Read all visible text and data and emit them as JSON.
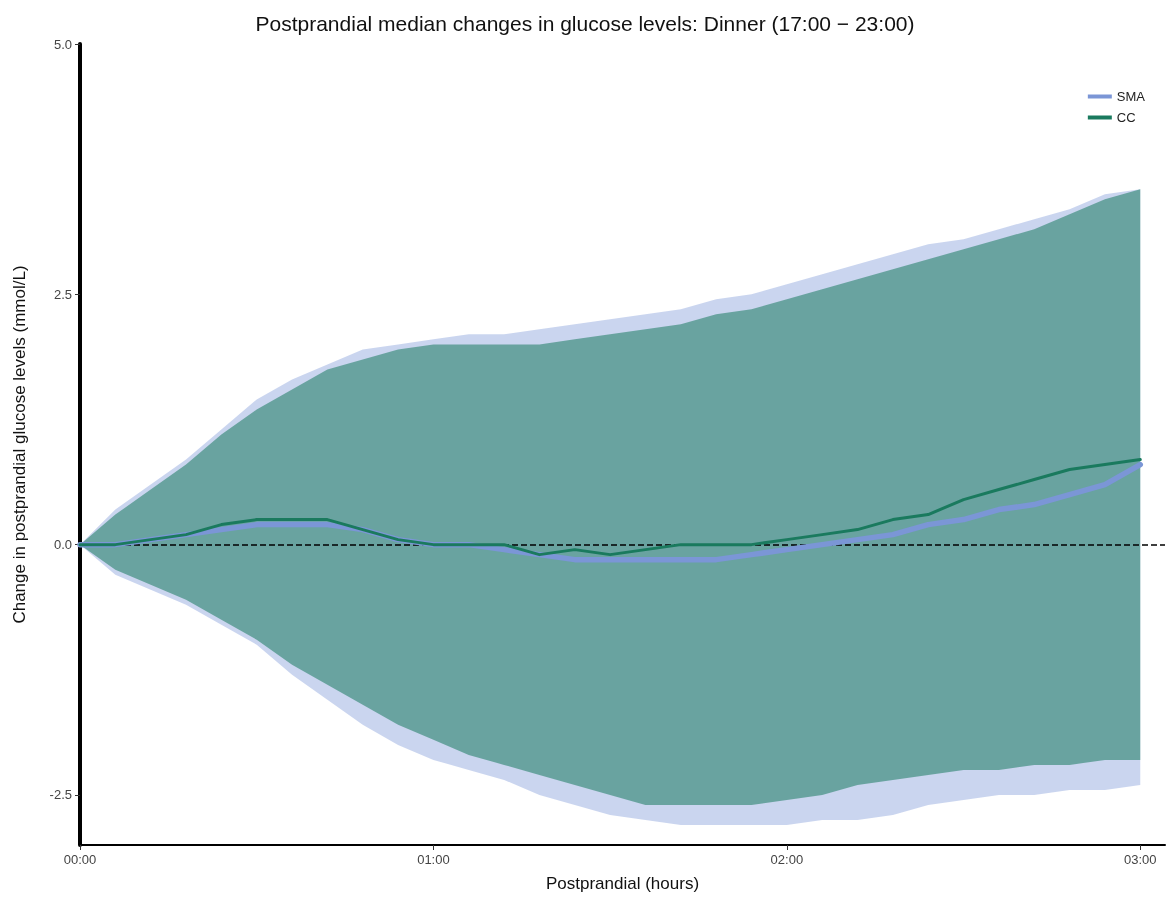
{
  "chart_data": {
    "type": "line",
    "title": "Postprandial median changes in glucose levels: Dinner (17:00 − 23:00)",
    "xlabel": "Postprandial (hours)",
    "ylabel": "Change in postprandial glucose levels (mmol/L)",
    "x": [
      0,
      0.1,
      0.2,
      0.3,
      0.4,
      0.5,
      0.6,
      0.7,
      0.8,
      0.9,
      1.0,
      1.1,
      1.2,
      1.3,
      1.4,
      1.5,
      1.6,
      1.7,
      1.8,
      1.9,
      2.0,
      2.1,
      2.2,
      2.3,
      2.4,
      2.5,
      2.6,
      2.7,
      2.8,
      2.9,
      3.0
    ],
    "series": [
      {
        "name": "SMA",
        "color": "#7b96d6",
        "values": [
          0,
          0,
          0.05,
          0.1,
          0.15,
          0.2,
          0.2,
          0.2,
          0.15,
          0.05,
          0,
          0,
          -0.05,
          -0.1,
          -0.15,
          -0.15,
          -0.15,
          -0.15,
          -0.15,
          -0.1,
          -0.05,
          0,
          0.05,
          0.1,
          0.2,
          0.25,
          0.35,
          0.4,
          0.5,
          0.6,
          0.8
        ],
        "lower": [
          0,
          -0.3,
          -0.45,
          -0.6,
          -0.8,
          -1.0,
          -1.3,
          -1.55,
          -1.8,
          -2.0,
          -2.15,
          -2.25,
          -2.35,
          -2.5,
          -2.6,
          -2.7,
          -2.75,
          -2.8,
          -2.8,
          -2.8,
          -2.8,
          -2.75,
          -2.75,
          -2.7,
          -2.6,
          -2.55,
          -2.5,
          -2.5,
          -2.45,
          -2.45,
          -2.4
        ],
        "upper": [
          0,
          0.35,
          0.6,
          0.85,
          1.15,
          1.45,
          1.65,
          1.8,
          1.95,
          2.0,
          2.05,
          2.1,
          2.1,
          2.15,
          2.2,
          2.25,
          2.3,
          2.35,
          2.45,
          2.5,
          2.6,
          2.7,
          2.8,
          2.9,
          3.0,
          3.05,
          3.15,
          3.25,
          3.35,
          3.5,
          3.55
        ]
      },
      {
        "name": "CC",
        "color": "#1a7a5e",
        "values": [
          0,
          0,
          0.05,
          0.1,
          0.2,
          0.25,
          0.25,
          0.25,
          0.15,
          0.05,
          0,
          0,
          0,
          -0.1,
          -0.05,
          -0.1,
          -0.05,
          0,
          0,
          0,
          0.05,
          0.1,
          0.15,
          0.25,
          0.3,
          0.45,
          0.55,
          0.65,
          0.75,
          0.8,
          0.85
        ],
        "lower": [
          0,
          -0.25,
          -0.4,
          -0.55,
          -0.75,
          -0.95,
          -1.2,
          -1.4,
          -1.6,
          -1.8,
          -1.95,
          -2.1,
          -2.2,
          -2.3,
          -2.4,
          -2.5,
          -2.6,
          -2.6,
          -2.6,
          -2.6,
          -2.55,
          -2.5,
          -2.4,
          -2.35,
          -2.3,
          -2.25,
          -2.25,
          -2.2,
          -2.2,
          -2.15,
          -2.15
        ],
        "upper": [
          0,
          0.3,
          0.55,
          0.8,
          1.1,
          1.35,
          1.55,
          1.75,
          1.85,
          1.95,
          2.0,
          2.0,
          2.0,
          2.0,
          2.05,
          2.1,
          2.15,
          2.2,
          2.3,
          2.35,
          2.45,
          2.55,
          2.65,
          2.75,
          2.85,
          2.95,
          3.05,
          3.15,
          3.3,
          3.45,
          3.55
        ]
      }
    ],
    "xlim": [
      0,
      3.07
    ],
    "xticks": [
      {
        "value": 0,
        "label": "00:00"
      },
      {
        "value": 1,
        "label": "01:00"
      },
      {
        "value": 2,
        "label": "02:00"
      },
      {
        "value": 3,
        "label": "03:00"
      }
    ],
    "ylim": [
      -3,
      5
    ],
    "yticks": [
      {
        "value": -2.5,
        "label": "-2.5"
      },
      {
        "value": 0,
        "label": "0.0"
      },
      {
        "value": 2.5,
        "label": "2.5"
      },
      {
        "value": 5,
        "label": "5.0"
      }
    ],
    "ref_lines": [
      {
        "axis": "y",
        "value": 0,
        "color": "#000000",
        "line_style": "dashed"
      }
    ],
    "grid": false,
    "legend": "top right",
    "marker": "none",
    "line_style": "solid"
  }
}
